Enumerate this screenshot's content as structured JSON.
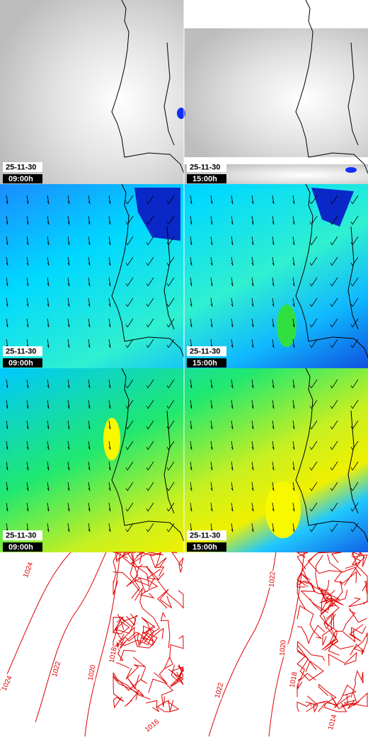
{
  "maps": [
    {
      "date": "25-11-30",
      "time": "09:00h"
    },
    {
      "date": "25-11-30",
      "time": "15:00h"
    },
    {
      "date": "25-11-30",
      "time": "09:00h"
    },
    {
      "date": "25-11-30",
      "time": "15:00h"
    },
    {
      "date": "25-11-30",
      "time": "09:00h"
    },
    {
      "date": "25-11-30",
      "time": "15:00h"
    }
  ],
  "isobars": {
    "left": [
      "1024",
      "1024",
      "1022",
      "1020",
      "1018",
      "1016"
    ],
    "right": [
      "1022",
      "1020",
      "1022",
      "1018",
      "1014"
    ]
  }
}
